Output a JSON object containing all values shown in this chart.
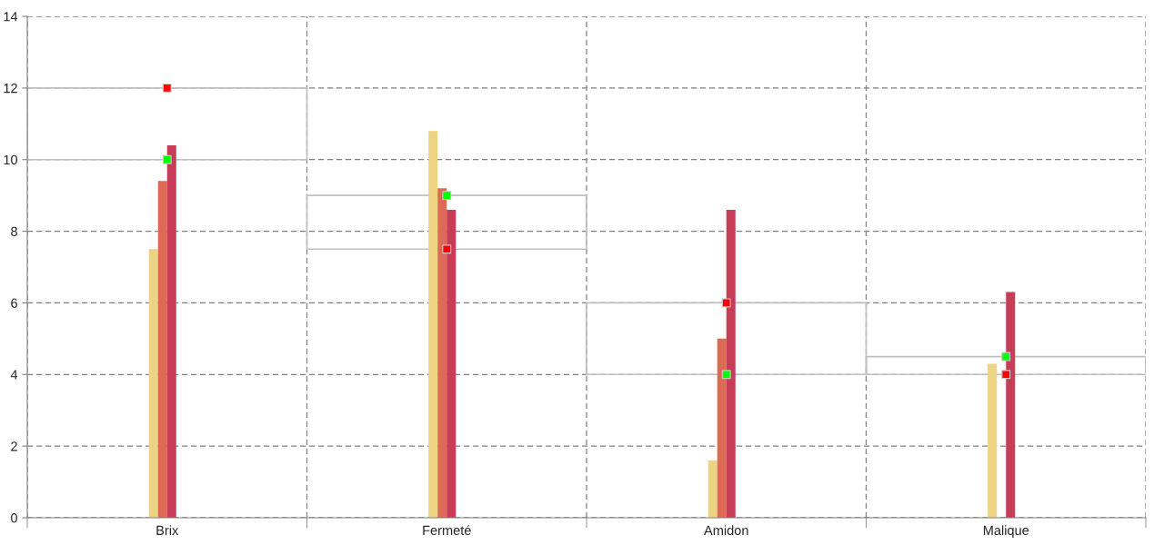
{
  "chart_data": {
    "type": "bar",
    "categories": [
      "Brix",
      "Fermeté",
      "Amidon",
      "Malique"
    ],
    "series": [
      {
        "type": "bar",
        "color": "#c0c0c0",
        "base": [
          10,
          7.5,
          4,
          4
        ],
        "values": [
          2,
          1.5,
          2,
          0.5
        ]
      },
      {
        "color": "#edd483",
        "values": [
          7.5,
          10.8,
          1.6,
          4.3
        ]
      },
      {
        "color": "#dd6a55",
        "values": [
          9.4,
          9.2,
          5.0,
          0
        ]
      },
      {
        "color": "#c73d57",
        "values": [
          10.4,
          8.6,
          8.6,
          6.3
        ]
      },
      {
        "color": "#7b2d4a",
        "values": [
          0,
          0,
          0,
          0
        ]
      },
      {
        "type": "scatter",
        "color": "#ff0000",
        "marker": "square",
        "values": [
          12,
          7.5,
          6,
          4
        ]
      },
      {
        "type": "scatter",
        "color": "#00ff00",
        "marker": "square",
        "values": [
          10,
          9,
          4,
          4.5
        ]
      }
    ],
    "ylim": [
      0,
      14
    ],
    "yticks": [
      0,
      2,
      4,
      6,
      8,
      10,
      12,
      14
    ],
    "grid": true
  }
}
